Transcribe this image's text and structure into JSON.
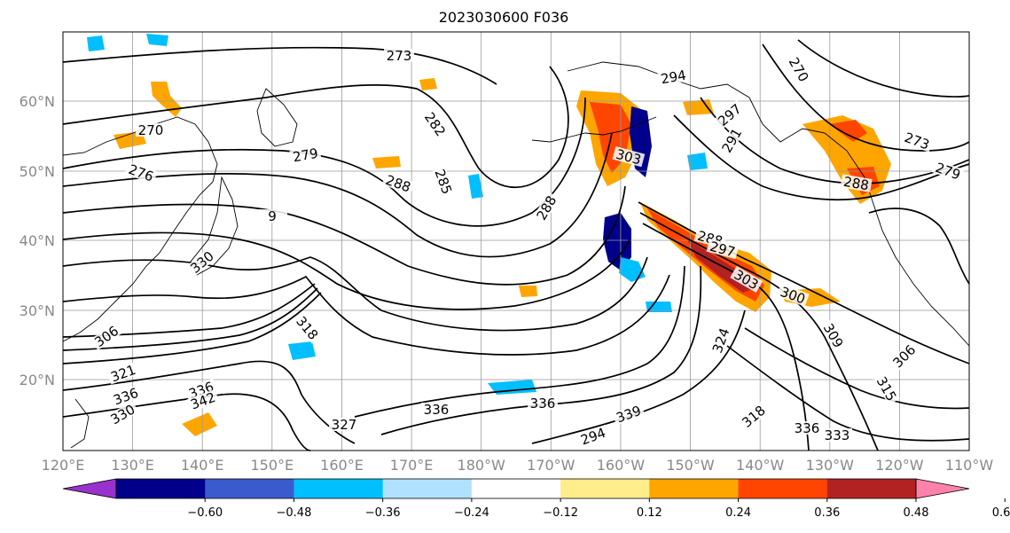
{
  "figure": {
    "title": "2023030600 F036"
  },
  "map": {
    "lat_labels": [
      "60°N",
      "50°N",
      "40°N",
      "30°N",
      "20°N"
    ],
    "lon_labels": [
      "120°E",
      "130°E",
      "140°E",
      "150°E",
      "160°E",
      "170°E",
      "180°W",
      "170°W",
      "160°W",
      "150°W",
      "140°W",
      "130°W",
      "120°W",
      "110°W"
    ],
    "contour_labels": [
      "273",
      "294",
      "270",
      "276",
      "279",
      "282",
      "288",
      "285",
      "303",
      "297",
      "291",
      "270",
      "273",
      "279",
      "288",
      "288",
      "288",
      "297",
      "300",
      "303",
      "309",
      "306",
      "315",
      "324",
      "318",
      "306",
      "321",
      "336",
      "342",
      "336",
      "327",
      "318",
      "330",
      "333",
      "336",
      "330",
      "294",
      "339",
      "336",
      "336",
      "9"
    ]
  },
  "colorbar": {
    "tick_labels": [
      "−0.60",
      "−0.48",
      "−0.36",
      "−0.24",
      "−0.12",
      "0.12",
      "0.24",
      "0.36",
      "0.48",
      "0.60"
    ],
    "colors": [
      "#9932cc",
      "#00008b",
      "#3a5bcd",
      "#00bfff",
      "#b0e2ff",
      "#ffffff",
      "#ffec8b",
      "#ffa500",
      "#ff4500",
      "#b22222",
      "#ff82ab"
    ]
  }
}
